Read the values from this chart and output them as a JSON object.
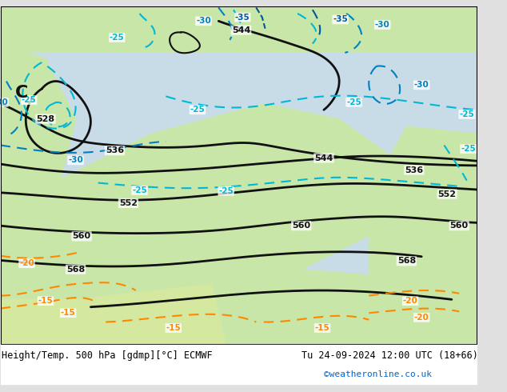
{
  "title_left": "Height/Temp. 500 hPa [gdmp][°C] ECMWF",
  "title_right": "Tu 24-09-2024 12:00 UTC (18+66)",
  "credit": "©weatheronline.co.uk",
  "bg_color": "#e8e8e8",
  "map_bg_green": "#c8e6b0",
  "map_bg_gray": "#d0d0d0",
  "contour_color_z500": "#000000",
  "contour_color_temp_neg": "#00b0d0",
  "contour_color_temp_pos": "#ff8c00",
  "land_color": "#c8e6b0",
  "sea_color": "#d8eaf0",
  "credit_color": "#0066cc"
}
